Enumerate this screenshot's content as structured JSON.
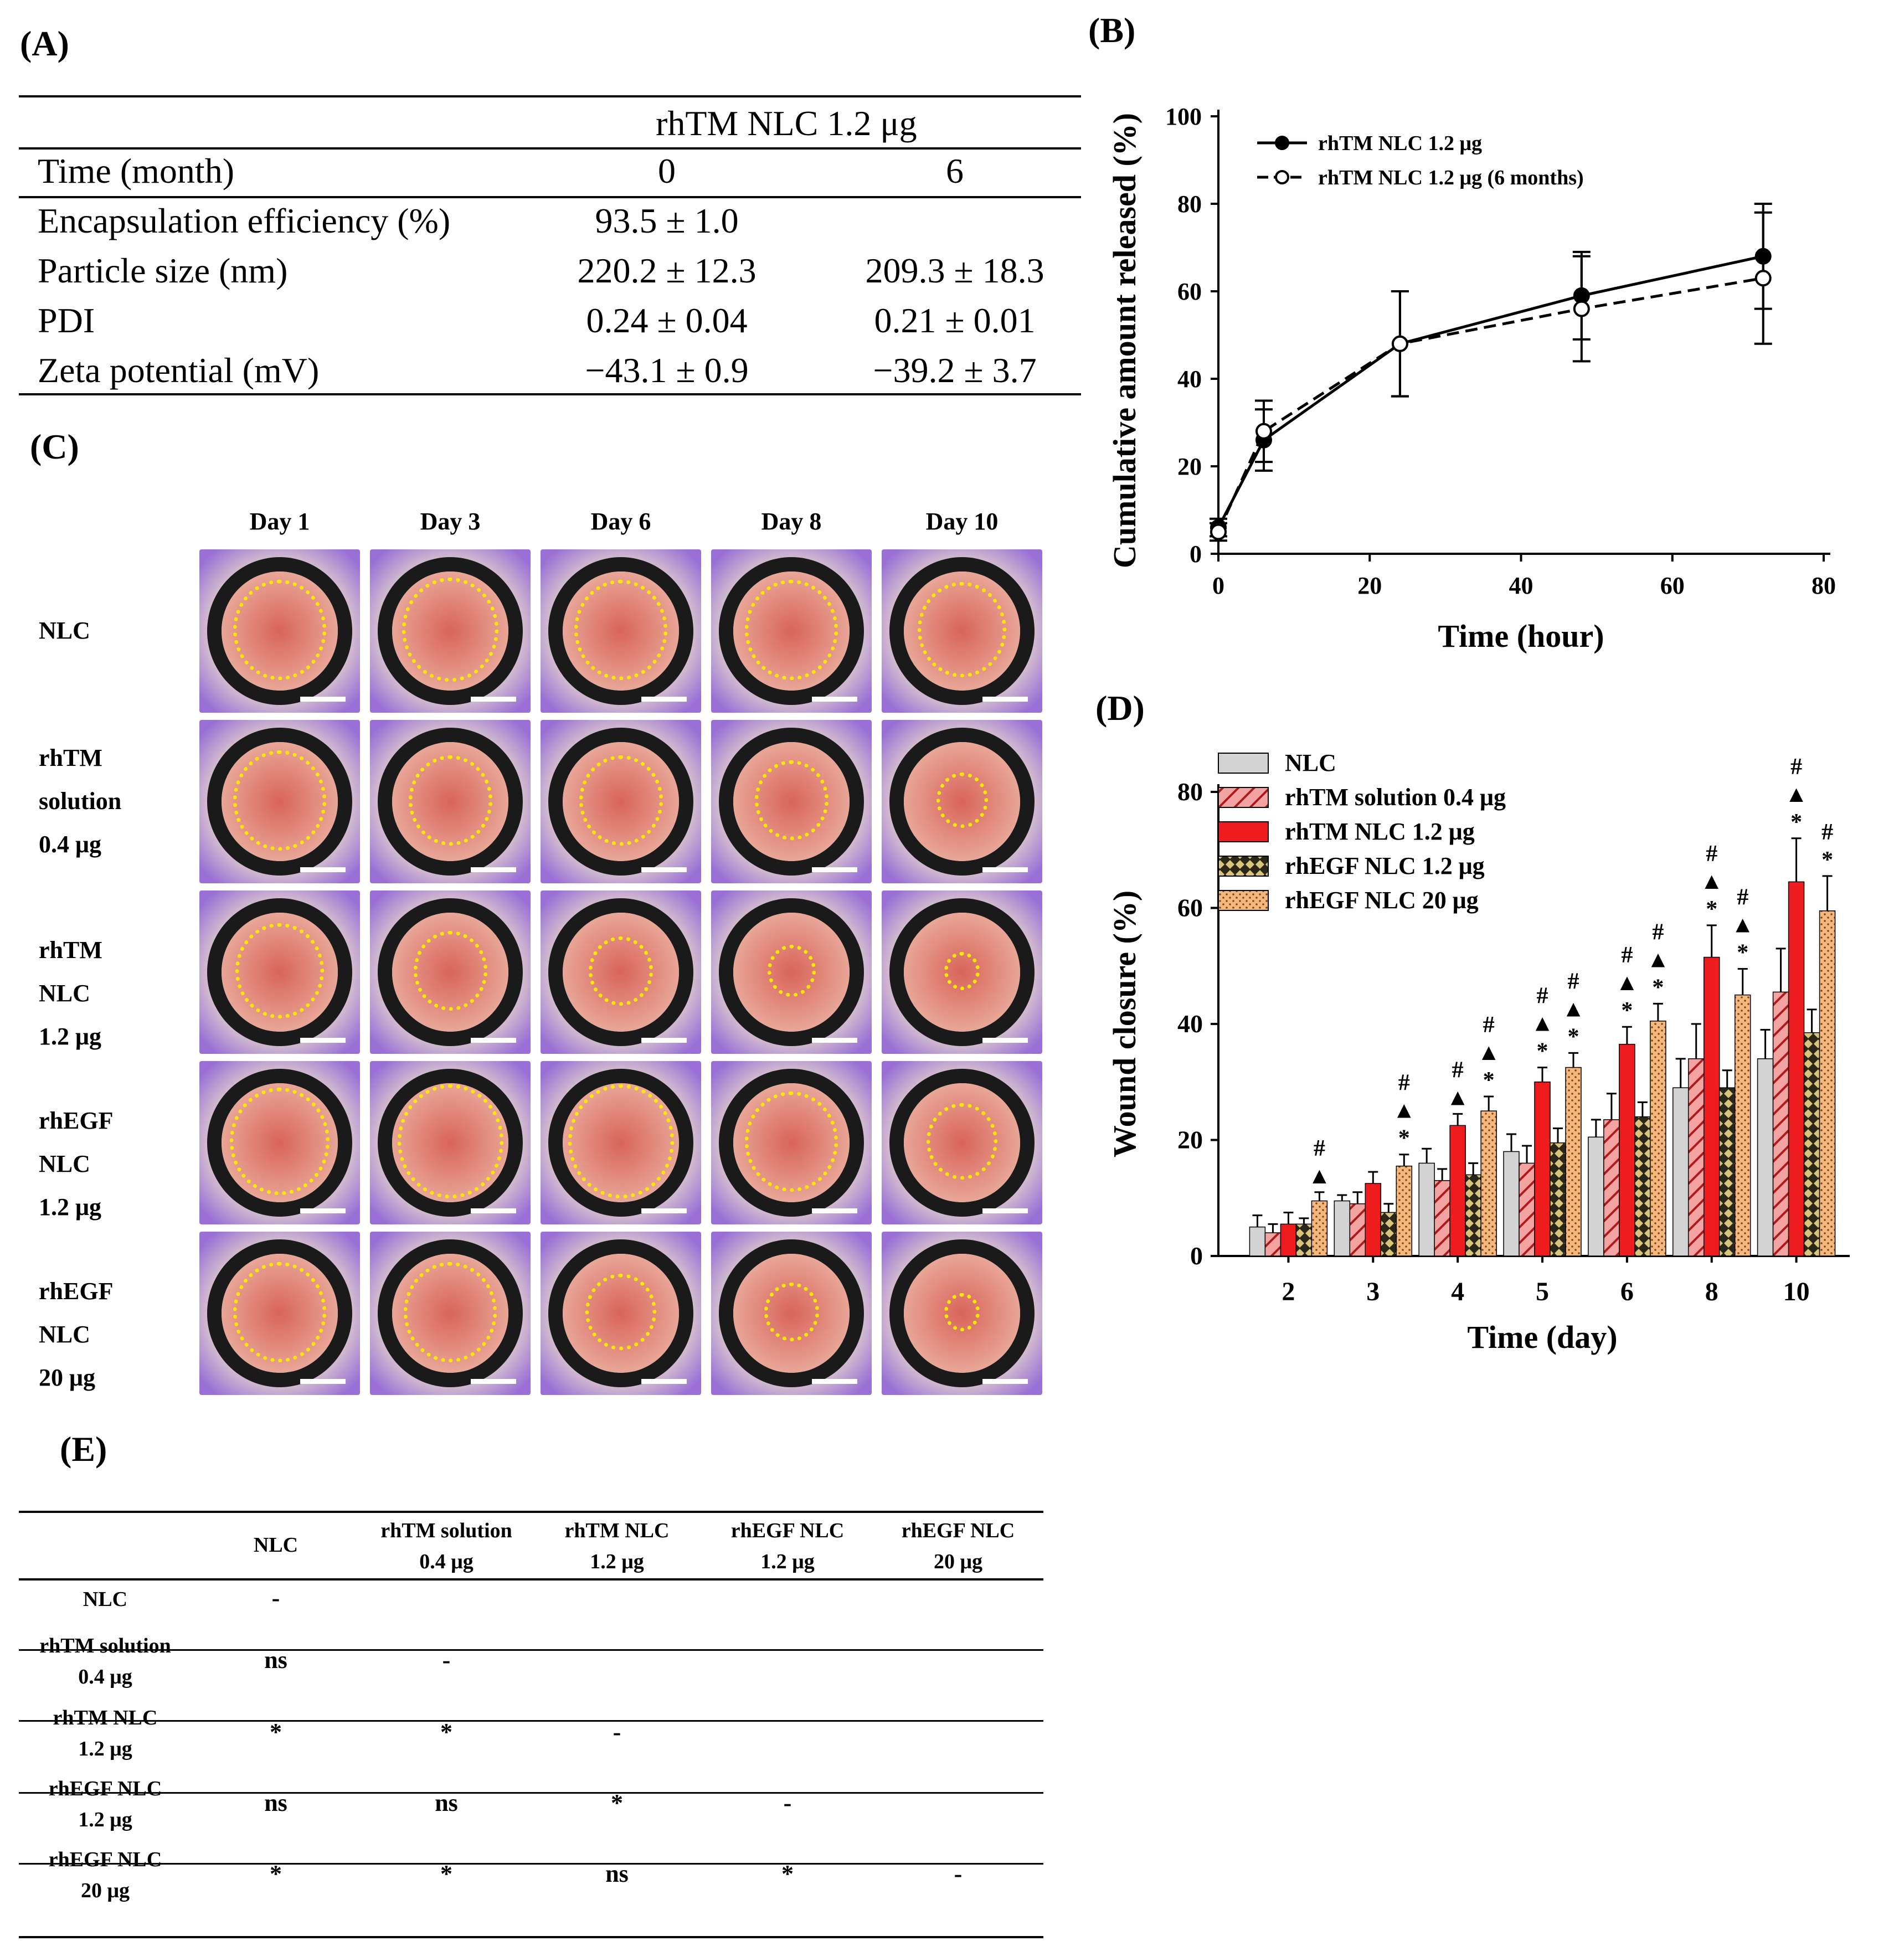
{
  "labels": {
    "A": "(A)",
    "B": "(B)",
    "C": "(C)",
    "D": "(D)",
    "E": "(E)"
  },
  "tableA": {
    "group_header": "rhTM NLC 1.2 μg",
    "rows": [
      {
        "label": "Time (month)",
        "v0": "0",
        "v6": "6"
      },
      {
        "label": "Encapsulation efficiency (%)",
        "v0": "93.5 ± 1.0",
        "v6": ""
      },
      {
        "label": "Particle size (nm)",
        "v0": "220.2 ± 12.3",
        "v6": "209.3 ± 18.3"
      },
      {
        "label": "PDI",
        "v0": "0.24 ± 0.04",
        "v6": "0.21 ± 0.01"
      },
      {
        "label": "Zeta potential (mV)",
        "v0": "−43.1 ± 0.9",
        "v6": "−39.2 ± 3.7"
      }
    ]
  },
  "photos": {
    "days": [
      "Day 1",
      "Day 3",
      "Day 6",
      "Day 8",
      "Day 10"
    ],
    "groups": [
      {
        "lines": [
          "NLC"
        ],
        "sizes": [
          0.58,
          0.6,
          0.58,
          0.58,
          0.55
        ]
      },
      {
        "lines": [
          "rhTM",
          "solution",
          "0.4 μg"
        ],
        "sizes": [
          0.58,
          0.52,
          0.52,
          0.46,
          0.32
        ]
      },
      {
        "lines": [
          "rhTM NLC",
          "1.2 μg"
        ],
        "sizes": [
          0.55,
          0.46,
          0.4,
          0.3,
          0.22
        ]
      },
      {
        "lines": [
          "rhEGF NLC",
          "1.2 μg"
        ],
        "sizes": [
          0.62,
          0.66,
          0.66,
          0.58,
          0.44
        ]
      },
      {
        "lines": [
          "rhEGF NLC",
          "20 μg"
        ],
        "sizes": [
          0.58,
          0.58,
          0.44,
          0.34,
          0.22
        ]
      }
    ],
    "colors": {
      "tissue": "#d9645a",
      "skin": "#e3d3cc",
      "glove": "#9a70d6",
      "ring": "#1a1a1a",
      "outline": "#ffea00"
    }
  },
  "chart_data": [
    {
      "type": "line",
      "title": "",
      "xlabel": "Time (hour)",
      "ylabel": "Cumulative amount released (%)",
      "xlim": [
        0,
        80
      ],
      "ylim": [
        0,
        100
      ],
      "xticks": [
        0,
        20,
        40,
        60,
        80
      ],
      "yticks": [
        0,
        20,
        40,
        60,
        80,
        100
      ],
      "legend_position": "top-left",
      "series": [
        {
          "name": "rhTM NLC 1.2 μg",
          "marker": "filled-circle",
          "line": "solid",
          "x": [
            0,
            6,
            24,
            48,
            72
          ],
          "y": [
            6,
            26,
            48,
            59,
            68
          ],
          "err": [
            2,
            7,
            12,
            10,
            12
          ]
        },
        {
          "name": "rhTM NLC 1.2 μg (6 months)",
          "marker": "open-circle",
          "line": "dashed",
          "x": [
            0,
            6,
            24,
            48,
            72
          ],
          "y": [
            5,
            28,
            48,
            56,
            63
          ],
          "err": [
            2,
            7,
            12,
            12,
            15
          ]
        }
      ]
    },
    {
      "type": "bar",
      "title": "",
      "xlabel": "Time (day)",
      "ylabel": "Wound closure (%)",
      "ylim": [
        0,
        80
      ],
      "yticks": [
        0,
        20,
        40,
        60,
        80
      ],
      "legend_position": "top-left",
      "categories": [
        "2",
        "3",
        "4",
        "5",
        "6",
        "8",
        "10"
      ],
      "series": [
        {
          "name": "NLC",
          "color": "#d3d3d3",
          "values": [
            5,
            9.5,
            16,
            18,
            20.5,
            29,
            34
          ],
          "err": [
            2,
            1,
            2.5,
            3,
            3,
            5,
            5
          ]
        },
        {
          "name": "rhTM solution 0.4 μg",
          "color": "#f4a3a3",
          "values": [
            4,
            9,
            13,
            16,
            23.5,
            34,
            45.5
          ],
          "err": [
            1.5,
            2,
            2,
            3,
            4.5,
            6,
            7.5
          ]
        },
        {
          "name": "rhTM NLC 1.2 μg",
          "color": "#ee1c1c",
          "values": [
            5.5,
            12.5,
            22.5,
            30,
            36.5,
            51.5,
            64.5
          ],
          "err": [
            2,
            2,
            2,
            2.5,
            3,
            5.5,
            7.5
          ]
        },
        {
          "name": "rhEGF NLC 1.2 μg",
          "color": "#8a7a45",
          "values": [
            5.5,
            7.5,
            14,
            19.5,
            24,
            29,
            38.5
          ],
          "err": [
            1,
            1.5,
            2,
            2.5,
            2.5,
            3,
            4
          ]
        },
        {
          "name": "rhEGF NLC 20 μg",
          "color": "#f6b77c",
          "values": [
            9.5,
            15.5,
            25,
            32.5,
            40.5,
            45,
            59.5
          ],
          "err": [
            1.5,
            2,
            2.5,
            2.5,
            3,
            4.5,
            6
          ]
        }
      ],
      "annotations": [
        {
          "category": "2",
          "series": "rhEGF NLC 20 μg",
          "marks": [
            "#",
            "▲"
          ]
        },
        {
          "category": "3",
          "series": "rhEGF NLC 20 μg",
          "marks": [
            "#",
            "▲",
            "*"
          ]
        },
        {
          "category": "4",
          "series": "rhTM NLC 1.2 μg",
          "marks": [
            "#",
            "▲"
          ]
        },
        {
          "category": "4",
          "series": "rhEGF NLC 20 μg",
          "marks": [
            "#",
            "▲",
            "*"
          ]
        },
        {
          "category": "5",
          "series": "rhTM NLC 1.2 μg",
          "marks": [
            "#",
            "▲",
            "*"
          ]
        },
        {
          "category": "5",
          "series": "rhEGF NLC 20 μg",
          "marks": [
            "#",
            "▲",
            "*"
          ]
        },
        {
          "category": "6",
          "series": "rhTM NLC 1.2 μg",
          "marks": [
            "#",
            "▲",
            "*"
          ]
        },
        {
          "category": "6",
          "series": "rhEGF NLC 20 μg",
          "marks": [
            "#",
            "▲",
            "*"
          ]
        },
        {
          "category": "8",
          "series": "rhTM NLC 1.2 μg",
          "marks": [
            "#",
            "▲",
            "*"
          ]
        },
        {
          "category": "8",
          "series": "rhEGF NLC 20 μg",
          "marks": [
            "#",
            "▲",
            "*"
          ]
        },
        {
          "category": "10",
          "series": "rhTM NLC 1.2 μg",
          "marks": [
            "#",
            "▲",
            "*"
          ]
        },
        {
          "category": "10",
          "series": "rhEGF NLC 20 μg",
          "marks": [
            "#",
            "*"
          ]
        }
      ]
    }
  ],
  "tableE": {
    "col_headers": [
      [
        "NLC"
      ],
      [
        "rhTM solution",
        "0.4 μg"
      ],
      [
        "rhTM NLC",
        "1.2 μg"
      ],
      [
        "rhEGF NLC",
        "1.2 μg"
      ],
      [
        "rhEGF NLC",
        "20 μg"
      ]
    ],
    "rows": [
      {
        "label": [
          "NLC"
        ],
        "cells": [
          "-"
        ]
      },
      {
        "label": [
          "rhTM solution",
          "0.4 μg"
        ],
        "cells": [
          "ns",
          "-"
        ]
      },
      {
        "label": [
          "rhTM NLC",
          "1.2 μg"
        ],
        "cells": [
          "*",
          "*",
          "-"
        ]
      },
      {
        "label": [
          "rhEGF NLC",
          "1.2 μg"
        ],
        "cells": [
          "ns",
          "ns",
          "*",
          "-"
        ]
      },
      {
        "label": [
          "rhEGF NLC",
          "20 μg"
        ],
        "cells": [
          "*",
          "*",
          "ns",
          "*",
          "-"
        ]
      }
    ]
  }
}
